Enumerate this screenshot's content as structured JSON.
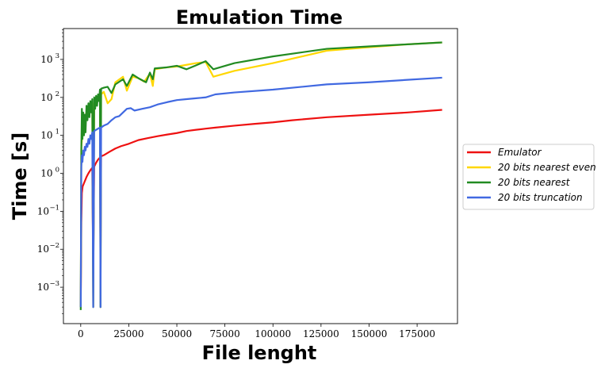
{
  "chart_data": {
    "type": "line",
    "title": "Emulation Time",
    "xlabel": "File lenght",
    "ylabel": "Time [s]",
    "xlim": [
      -9000,
      196000
    ],
    "ylim": [
      0.00011,
      6500
    ],
    "yscale": "log",
    "grid": false,
    "legend_position": "outside-right",
    "xticks": [
      0,
      25000,
      50000,
      75000,
      100000,
      125000,
      150000,
      175000
    ],
    "xtick_labels": [
      "0",
      "25000",
      "50000",
      "75000",
      "100000",
      "125000",
      "150000",
      "175000"
    ],
    "yticks": [
      0.001,
      0.01,
      0.1,
      1,
      10,
      100,
      1000
    ],
    "ytick_labels": [
      {
        "base": "10",
        "exp": "−3"
      },
      {
        "base": "10",
        "exp": "−2"
      },
      {
        "base": "10",
        "exp": "−1"
      },
      {
        "base": "10",
        "exp": "0"
      },
      {
        "base": "10",
        "exp": "1"
      },
      {
        "base": "10",
        "exp": "2"
      },
      {
        "base": "10",
        "exp": "3"
      }
    ],
    "series": [
      {
        "name": "Emulator",
        "color": "#ee1111",
        "points": [
          [
            0,
            0.0003
          ],
          [
            300,
            0.05
          ],
          [
            600,
            0.3
          ],
          [
            1000,
            0.45
          ],
          [
            2000,
            0.6
          ],
          [
            3000,
            0.8
          ],
          [
            4000,
            1.0
          ],
          [
            5000,
            1.2
          ],
          [
            6000,
            1.4
          ],
          [
            6500,
            0.003
          ],
          [
            7000,
            1.5
          ],
          [
            8000,
            1.9
          ],
          [
            9000,
            2.3
          ],
          [
            10000,
            2.6
          ],
          [
            10300,
            0.0045
          ],
          [
            10600,
            2.8
          ],
          [
            12000,
            3.0
          ],
          [
            15000,
            3.7
          ],
          [
            18000,
            4.5
          ],
          [
            21000,
            5.2
          ],
          [
            25000,
            6.0
          ],
          [
            30000,
            7.5
          ],
          [
            35000,
            8.5
          ],
          [
            40000,
            9.5
          ],
          [
            45000,
            10.5
          ],
          [
            50000,
            11.5
          ],
          [
            55000,
            13
          ],
          [
            60000,
            14
          ],
          [
            65000,
            15
          ],
          [
            70000,
            16
          ],
          [
            80000,
            18
          ],
          [
            90000,
            20
          ],
          [
            100000,
            22
          ],
          [
            110000,
            25
          ],
          [
            128000,
            30
          ],
          [
            150000,
            35
          ],
          [
            170000,
            40
          ],
          [
            188000,
            47
          ]
        ]
      },
      {
        "name": "20 bits nearest even",
        "color": "#ffd700",
        "points": [
          [
            0,
            0.0003
          ],
          [
            300,
            5
          ],
          [
            800,
            10
          ],
          [
            1500,
            20
          ],
          [
            2200,
            30
          ],
          [
            3000,
            40
          ],
          [
            4000,
            45
          ],
          [
            5000,
            50
          ],
          [
            6000,
            60
          ],
          [
            6500,
            0.0003
          ],
          [
            7000,
            70
          ],
          [
            8000,
            80
          ],
          [
            9000,
            90
          ],
          [
            10000,
            100
          ],
          [
            10300,
            0.0003
          ],
          [
            10600,
            120
          ],
          [
            12000,
            140
          ],
          [
            14000,
            70
          ],
          [
            16000,
            90
          ],
          [
            18000,
            250
          ],
          [
            22000,
            350
          ],
          [
            24000,
            150
          ],
          [
            27000,
            350
          ],
          [
            30000,
            320
          ],
          [
            33000,
            260
          ],
          [
            36000,
            420
          ],
          [
            37500,
            200
          ],
          [
            38500,
            550
          ],
          [
            45000,
            620
          ],
          [
            50000,
            650
          ],
          [
            55000,
            720
          ],
          [
            60000,
            800
          ],
          [
            65000,
            850
          ],
          [
            69000,
            350
          ],
          [
            80000,
            500
          ],
          [
            100000,
            800
          ],
          [
            128000,
            1700
          ],
          [
            150000,
            2100
          ],
          [
            170000,
            2500
          ],
          [
            188000,
            2800
          ]
        ]
      },
      {
        "name": "20 bits nearest",
        "color": "#228b22",
        "points": [
          [
            0,
            0.00025
          ],
          [
            300,
            4
          ],
          [
            600,
            50
          ],
          [
            900,
            8
          ],
          [
            1300,
            40
          ],
          [
            1700,
            10
          ],
          [
            2100,
            35
          ],
          [
            2500,
            12
          ],
          [
            3000,
            60
          ],
          [
            3500,
            25
          ],
          [
            4000,
            70
          ],
          [
            4500,
            30
          ],
          [
            5000,
            80
          ],
          [
            5500,
            40
          ],
          [
            6000,
            90
          ],
          [
            6500,
            0.0003
          ],
          [
            7000,
            100
          ],
          [
            7500,
            50
          ],
          [
            8000,
            110
          ],
          [
            8500,
            60
          ],
          [
            9000,
            120
          ],
          [
            9500,
            80
          ],
          [
            10000,
            160
          ],
          [
            10300,
            0.0003
          ],
          [
            10600,
            170
          ],
          [
            12000,
            180
          ],
          [
            14000,
            190
          ],
          [
            16000,
            130
          ],
          [
            18000,
            220
          ],
          [
            22000,
            300
          ],
          [
            24000,
            200
          ],
          [
            27000,
            400
          ],
          [
            30000,
            320
          ],
          [
            34000,
            250
          ],
          [
            36000,
            450
          ],
          [
            37500,
            300
          ],
          [
            38500,
            580
          ],
          [
            45000,
            620
          ],
          [
            50000,
            680
          ],
          [
            55000,
            550
          ],
          [
            60000,
            700
          ],
          [
            65000,
            900
          ],
          [
            69000,
            550
          ],
          [
            80000,
            800
          ],
          [
            100000,
            1200
          ],
          [
            128000,
            1900
          ],
          [
            150000,
            2200
          ],
          [
            170000,
            2500
          ],
          [
            188000,
            2800
          ]
        ]
      },
      {
        "name": "20 bits truncation",
        "color": "#4169e1",
        "points": [
          [
            0,
            0.0003
          ],
          [
            300,
            1.5
          ],
          [
            600,
            3
          ],
          [
            900,
            2
          ],
          [
            1300,
            4
          ],
          [
            1700,
            3
          ],
          [
            2100,
            5
          ],
          [
            2500,
            4
          ],
          [
            3000,
            6
          ],
          [
            3500,
            5
          ],
          [
            4000,
            8
          ],
          [
            4500,
            6
          ],
          [
            5000,
            10
          ],
          [
            5500,
            8
          ],
          [
            6000,
            12
          ],
          [
            6500,
            0.0003
          ],
          [
            7000,
            13
          ],
          [
            8000,
            14
          ],
          [
            9000,
            15
          ],
          [
            10000,
            16
          ],
          [
            10300,
            0.0003
          ],
          [
            10600,
            16
          ],
          [
            12000,
            18
          ],
          [
            14000,
            20
          ],
          [
            16000,
            25
          ],
          [
            18000,
            30
          ],
          [
            20000,
            32
          ],
          [
            22000,
            40
          ],
          [
            24000,
            50
          ],
          [
            26000,
            52
          ],
          [
            28000,
            45
          ],
          [
            32000,
            50
          ],
          [
            36000,
            55
          ],
          [
            40000,
            65
          ],
          [
            45000,
            75
          ],
          [
            50000,
            85
          ],
          [
            55000,
            90
          ],
          [
            60000,
            95
          ],
          [
            65000,
            100
          ],
          [
            70000,
            120
          ],
          [
            80000,
            135
          ],
          [
            100000,
            160
          ],
          [
            128000,
            220
          ],
          [
            150000,
            250
          ],
          [
            170000,
            290
          ],
          [
            188000,
            330
          ]
        ]
      }
    ]
  }
}
